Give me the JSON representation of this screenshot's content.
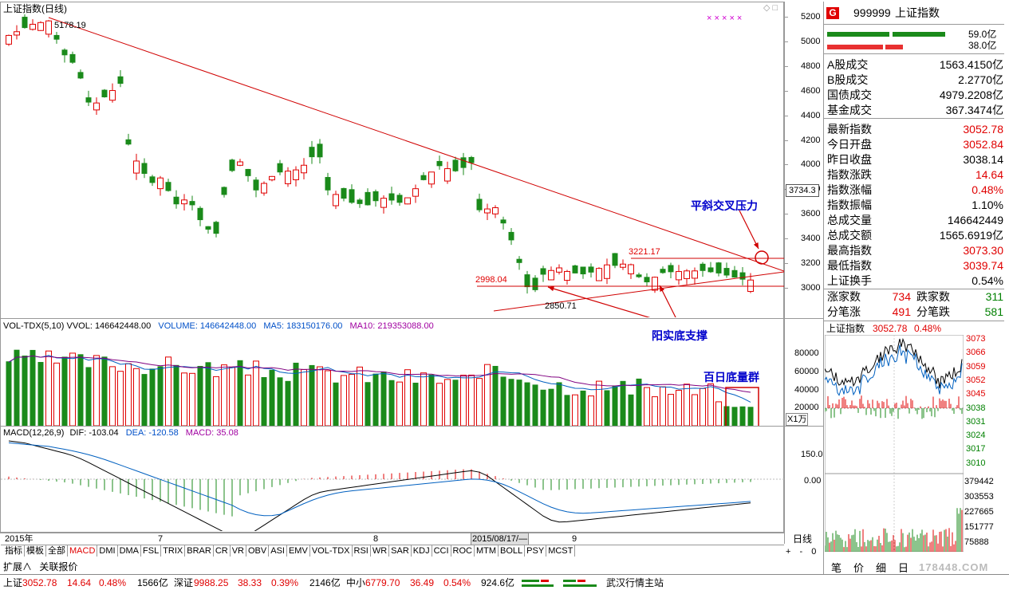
{
  "main_chart": {
    "title": "上证指数(日线)",
    "high_label": "5178.19",
    "low_label": "2850.71",
    "level_2998": "2998.04",
    "level_3221": "3221.17",
    "price_axis": [
      "5200",
      "5000",
      "4800",
      "4600",
      "4400",
      "4200",
      "4000",
      "3800",
      "3600",
      "3400",
      "3200",
      "3000"
    ],
    "cursor_price": "3734.3",
    "markers": "× × × × ×"
  },
  "annotations": {
    "pressure": "平斜交叉压力",
    "support": "阳实底支撑",
    "volume": "百日底量群"
  },
  "volume_panel": {
    "label": "VOL-TDX(5,10)",
    "vvol": "VVOL: 146642448.00",
    "volume": "VOLUME: 146642448.00",
    "ma5": "MA5: 183150176.00",
    "ma10": "MA10: 219353088.00",
    "axis": [
      "80000",
      "60000",
      "40000",
      "20000"
    ],
    "unit": "X1万"
  },
  "macd_panel": {
    "label": "MACD(12,26,9)",
    "dif": "DIF: -103.04",
    "dea": "DEA: -120.58",
    "macd": "MACD: 35.08",
    "axis": [
      "150.0",
      "0.00"
    ]
  },
  "date_axis": {
    "labels": [
      "2015年",
      "7",
      "8",
      "9"
    ],
    "cursor_date": "2015/08/17/—",
    "period": "日线"
  },
  "tabs": [
    "指标",
    "模板",
    "全部",
    "MACD",
    "DMI",
    "DMA",
    "FSL",
    "TRIX",
    "BRAR",
    "CR",
    "VR",
    "OBV",
    "ASI",
    "EMV",
    "VOL-TDX",
    "RSI",
    "WR",
    "SAR",
    "KDJ",
    "CCI",
    "ROC",
    "MTM",
    "BOLL",
    "PSY",
    "MCST"
  ],
  "tabs_row2": [
    "扩展∧",
    "关联报价"
  ],
  "zoom_controls": [
    "+",
    "-",
    "0"
  ],
  "right_panel": {
    "badge": "G",
    "code": "999999",
    "name": "上证指数",
    "bar_values": [
      "59.0亿",
      "38.0亿"
    ],
    "rows": [
      {
        "label": "A股成交",
        "value": "1563.4150亿",
        "color": "black"
      },
      {
        "label": "B股成交",
        "value": "2.2770亿",
        "color": "black"
      },
      {
        "label": "国债成交",
        "value": "4979.2208亿",
        "color": "black"
      },
      {
        "label": "基金成交",
        "value": "367.3474亿",
        "color": "black"
      },
      {
        "label": "最新指数",
        "value": "3052.78",
        "color": "red"
      },
      {
        "label": "今日开盘",
        "value": "3052.84",
        "color": "red"
      },
      {
        "label": "昨日收盘",
        "value": "3038.14",
        "color": "black"
      },
      {
        "label": "指数涨跌",
        "value": "14.64",
        "color": "red"
      },
      {
        "label": "指数涨幅",
        "value": "0.48%",
        "color": "red"
      },
      {
        "label": "指数振幅",
        "value": "1.10%",
        "color": "black"
      },
      {
        "label": "总成交量",
        "value": "146642449",
        "color": "black"
      },
      {
        "label": "总成交额",
        "value": "1565.6919亿",
        "color": "black"
      },
      {
        "label": "最高指数",
        "value": "3073.30",
        "color": "red"
      },
      {
        "label": "最低指数",
        "value": "3039.74",
        "color": "red"
      },
      {
        "label": "上证换手",
        "value": "0.54%",
        "color": "black"
      }
    ],
    "breadth": {
      "up_label": "涨家数",
      "up": "734",
      "down_label": "跌家数",
      "down": "311",
      "tick_up_label": "分笔涨",
      "tick_up": "491",
      "tick_down_label": "分笔跌",
      "tick_down": "581"
    }
  },
  "intraday": {
    "title": "上证指数",
    "price": "3052.78",
    "pct": "0.48%",
    "price_axis": [
      "3073",
      "3066",
      "3059",
      "3052",
      "3045",
      "3038",
      "3031",
      "3024",
      "3017",
      "3010"
    ],
    "vol_axis": [
      "379442",
      "303553",
      "227665",
      "151777",
      "75888"
    ],
    "tabs": [
      "笔",
      "价",
      "细",
      "日"
    ],
    "watermark": "178448.COM"
  },
  "statusbar": {
    "sh_label": "上证",
    "sh": "3052.78",
    "sh_chg": "14.64",
    "sh_pct": "0.48%",
    "sh_amt": "1566亿",
    "sz_label": "深证",
    "sz": "9988.25",
    "sz_chg": "38.33",
    "sz_pct": "0.39%",
    "sz_amt": "2146亿",
    "zx_label": "中小",
    "zx": "6779.70",
    "zx_chg": "36.49",
    "zx_pct": "0.54%",
    "zx_amt": "924.6亿",
    "site": "武汉行情主站"
  },
  "colors": {
    "up": "#e00000",
    "down": "#1a8a1a",
    "ma5": "#0060c0",
    "ma10": "#800080",
    "bg": "#ffffff"
  }
}
